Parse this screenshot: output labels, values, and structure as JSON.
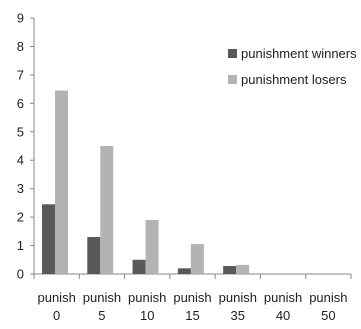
{
  "chart_data": {
    "type": "bar",
    "title": "",
    "xlabel": "",
    "ylabel": "",
    "ylim": [
      0,
      9
    ],
    "yticks": [
      "0",
      "1",
      "2",
      "3",
      "4",
      "5",
      "6",
      "7",
      "8",
      "9"
    ],
    "grid": false,
    "legend_position": "top-right",
    "categories": [
      [
        "punish",
        "0"
      ],
      [
        "punish",
        "5"
      ],
      [
        "punish",
        "10"
      ],
      [
        "punish",
        "15"
      ],
      [
        "punish",
        "35"
      ],
      [
        "punish",
        "40"
      ],
      [
        "punish",
        "50"
      ]
    ],
    "series": [
      {
        "name": "punishment winners",
        "color": "#595959",
        "values": [
          2.45,
          1.3,
          0.5,
          0.2,
          0.28,
          0,
          0
        ]
      },
      {
        "name": "punishment losers",
        "color": "#b3b3b3",
        "values": [
          6.45,
          4.5,
          1.9,
          1.05,
          0.32,
          0,
          0
        ]
      }
    ]
  }
}
